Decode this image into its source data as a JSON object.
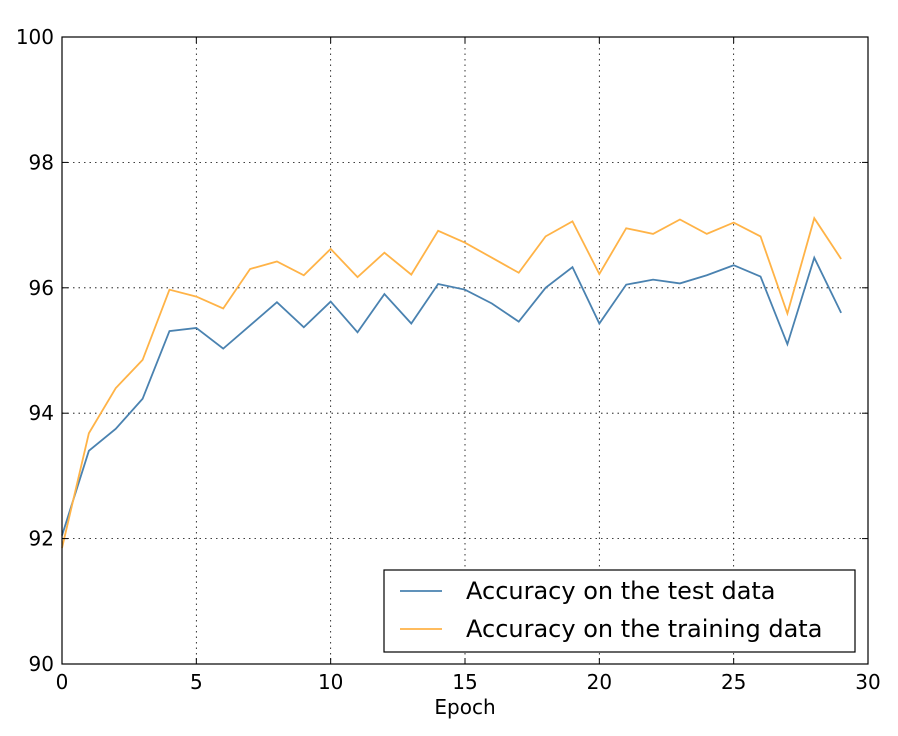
{
  "chart_data": {
    "type": "line",
    "title": "",
    "xlabel": "Epoch",
    "ylabel": "",
    "xlim": [
      0,
      30
    ],
    "ylim": [
      90,
      100
    ],
    "xticks": [
      0,
      5,
      10,
      15,
      20,
      25,
      30
    ],
    "yticks": [
      90,
      92,
      94,
      96,
      98,
      100
    ],
    "grid": true,
    "legend_position": "lower-right",
    "x": [
      0,
      1,
      2,
      3,
      4,
      5,
      6,
      7,
      8,
      9,
      10,
      11,
      12,
      13,
      14,
      15,
      16,
      17,
      18,
      19,
      20,
      21,
      22,
      23,
      24,
      25,
      26,
      27,
      28,
      29
    ],
    "series": [
      {
        "name": "Accuracy on the test data",
        "color": "#4a82b0",
        "values": [
          92.05,
          93.4,
          93.75,
          94.23,
          95.31,
          95.36,
          95.03,
          95.4,
          95.77,
          95.37,
          95.78,
          95.29,
          95.9,
          95.43,
          96.06,
          95.97,
          95.75,
          95.46,
          96.0,
          96.33,
          95.43,
          96.05,
          96.13,
          96.07,
          96.2,
          96.36,
          96.18,
          95.1,
          96.48,
          95.6
        ]
      },
      {
        "name": "Accuracy on the training data",
        "color": "#ffb347",
        "values": [
          91.85,
          93.68,
          94.4,
          94.85,
          95.97,
          95.86,
          95.67,
          96.3,
          96.42,
          96.2,
          96.62,
          96.17,
          96.56,
          96.21,
          96.91,
          96.72,
          96.48,
          96.24,
          96.82,
          97.06,
          96.22,
          96.95,
          96.86,
          97.09,
          96.86,
          97.04,
          96.82,
          95.59,
          97.11,
          96.46
        ]
      }
    ]
  }
}
